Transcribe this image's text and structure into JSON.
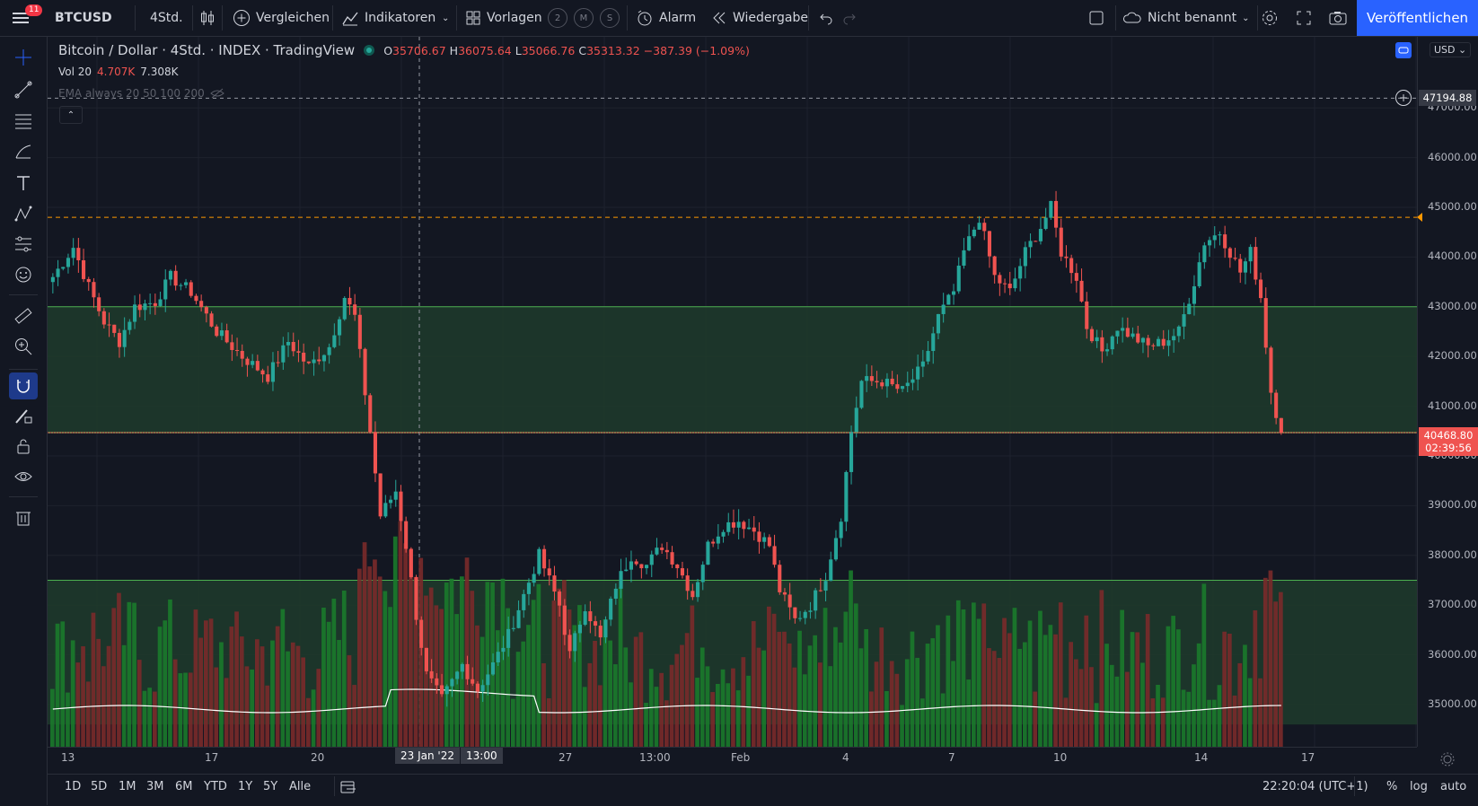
{
  "topbar": {
    "menu_badge": "11",
    "symbol": "BTCUSD",
    "interval": "4Std.",
    "compare": "Vergleichen",
    "indicators": "Indikatoren",
    "templates": "Vorlagen",
    "circle_labels": [
      "2",
      "M",
      "S"
    ],
    "alarm": "Alarm",
    "replay": "Wiedergabe",
    "layout_name": "Nicht benannt",
    "publish": "Veröffentlichen"
  },
  "legend": {
    "title": "Bitcoin / Dollar · 4Std. · INDEX · TradingView",
    "o_label": "O",
    "o": "35706.67",
    "h_label": "H",
    "h": "36075.64",
    "l_label": "L",
    "l": "35066.76",
    "c_label": "C",
    "c": "35313.32",
    "change": "−387.39 (−1.09%)",
    "vol_label": "Vol 20",
    "vol_a": "4.707K",
    "vol_b": "7.308K",
    "ema_label": "EMA always 20 50 100 200"
  },
  "price_axis": {
    "currency": "USD",
    "labels": [
      "47000.00",
      "46000.00",
      "45000.00",
      "44000.00",
      "43000.00",
      "42000.00",
      "41000.00",
      "40000.00",
      "39000.00",
      "38000.00",
      "37000.00",
      "36000.00",
      "35000.00"
    ],
    "crosshair_price": "47194.88",
    "last_price": "40468.80",
    "countdown": "02:39:56"
  },
  "time_axis": {
    "labels": [
      "13",
      "17",
      "20",
      "23 Jan '22",
      "13:00",
      "27",
      "13:00",
      "Feb",
      "4",
      "7",
      "10",
      "14",
      "17"
    ]
  },
  "bottombar": {
    "ranges": [
      "1D",
      "5D",
      "1M",
      "3M",
      "6M",
      "YTD",
      "1Y",
      "5Y",
      "Alle"
    ],
    "clock": "22:20:04 (UTC+1)",
    "percent": "%",
    "log": "log",
    "auto": "auto"
  },
  "colors": {
    "up": "#26a69a",
    "down": "#ef5350",
    "zone": "#1e3b2c",
    "zone_line": "#4caf50",
    "accent": "#2962ff"
  },
  "chart_data": {
    "type": "candlestick",
    "symbol": "BTCUSD",
    "ylim": [
      34600,
      47600
    ],
    "zones": [
      [
        40468.8,
        43000
      ],
      [
        34600,
        37500
      ]
    ],
    "resistance_level": 44800,
    "last_price": 40468.8,
    "crosshair_price": 47194.88,
    "anchors": [
      [
        0,
        43600
      ],
      [
        4,
        44200
      ],
      [
        7,
        43400
      ],
      [
        10,
        42700
      ],
      [
        13,
        42300
      ],
      [
        16,
        43000
      ],
      [
        20,
        43100
      ],
      [
        23,
        43600
      ],
      [
        27,
        43300
      ],
      [
        32,
        42500
      ],
      [
        37,
        42000
      ],
      [
        42,
        41600
      ],
      [
        46,
        42300
      ],
      [
        50,
        41800
      ],
      [
        54,
        42200
      ],
      [
        57,
        43200
      ],
      [
        59,
        42800
      ],
      [
        62,
        40500
      ],
      [
        64,
        38800
      ],
      [
        67,
        39300
      ],
      [
        69,
        38200
      ],
      [
        71,
        36800
      ],
      [
        73,
        35600
      ],
      [
        76,
        35100
      ],
      [
        80,
        35800
      ],
      [
        83,
        35300
      ],
      [
        86,
        35800
      ],
      [
        89,
        36400
      ],
      [
        92,
        37200
      ],
      [
        95,
        38000
      ],
      [
        99,
        37000
      ],
      [
        101,
        36000
      ],
      [
        104,
        37000
      ],
      [
        107,
        36300
      ],
      [
        110,
        37400
      ],
      [
        113,
        38000
      ],
      [
        116,
        37800
      ],
      [
        119,
        38200
      ],
      [
        122,
        37800
      ],
      [
        125,
        37200
      ],
      [
        128,
        38200
      ],
      [
        131,
        38600
      ],
      [
        134,
        38700
      ],
      [
        137,
        38500
      ],
      [
        140,
        38200
      ],
      [
        142,
        37300
      ],
      [
        145,
        36700
      ],
      [
        148,
        37000
      ],
      [
        151,
        37600
      ],
      [
        154,
        38800
      ],
      [
        156,
        40500
      ],
      [
        158,
        41500
      ],
      [
        162,
        41500
      ],
      [
        166,
        41300
      ],
      [
        170,
        41800
      ],
      [
        173,
        42800
      ],
      [
        176,
        43300
      ],
      [
        178,
        44100
      ],
      [
        181,
        44800
      ],
      [
        184,
        43600
      ],
      [
        187,
        43300
      ],
      [
        190,
        44100
      ],
      [
        193,
        44600
      ],
      [
        195,
        45000
      ],
      [
        197,
        44100
      ],
      [
        200,
        43600
      ],
      [
        202,
        42600
      ],
      [
        205,
        42100
      ],
      [
        208,
        42600
      ],
      [
        211,
        42400
      ],
      [
        214,
        42200
      ],
      [
        217,
        42300
      ],
      [
        220,
        42500
      ],
      [
        223,
        43500
      ],
      [
        225,
        44300
      ],
      [
        228,
        44500
      ],
      [
        230,
        44100
      ],
      [
        232,
        43700
      ],
      [
        234,
        44100
      ],
      [
        236,
        43200
      ],
      [
        238,
        41300
      ],
      [
        240,
        40468.8
      ]
    ],
    "volume": {
      "ylim": [
        0,
        9000
      ],
      "ma_level": 3200
    }
  }
}
